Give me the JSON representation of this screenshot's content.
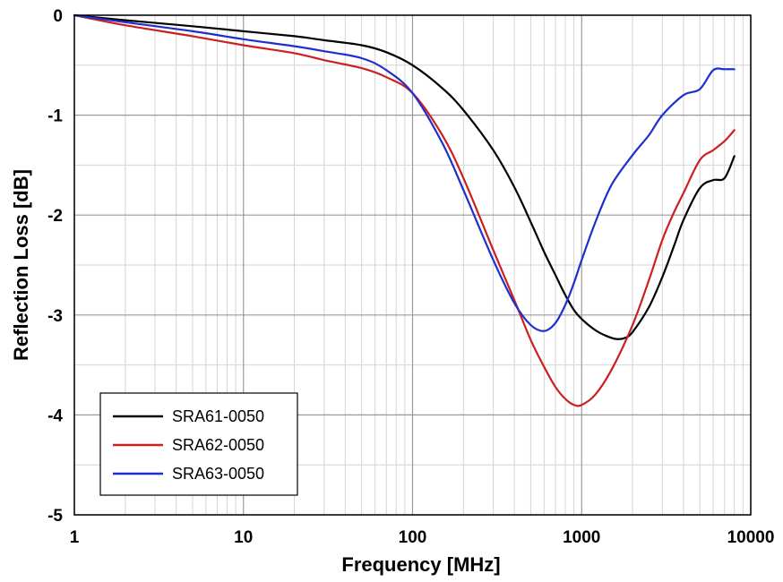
{
  "chart_data": {
    "type": "line",
    "xlabel": "Frequency [MHz]",
    "ylabel": "Reflection Loss [dB]",
    "x_scale": "log",
    "xlim": [
      1,
      10000
    ],
    "ylim": [
      -5,
      0
    ],
    "x_ticks": [
      1,
      10,
      100,
      1000,
      10000
    ],
    "x_tick_labels": [
      "1",
      "10",
      "100",
      "1000",
      "10000"
    ],
    "y_ticks": [
      0,
      -1,
      -2,
      -3,
      -4,
      -5
    ],
    "y_tick_labels": [
      "0",
      "-1",
      "-2",
      "-3",
      "-4",
      "-5"
    ],
    "grid": true,
    "minor_grid": true,
    "legend_position": "bottom-left",
    "series": [
      {
        "name": "SRA61-0050",
        "color": "#000000",
        "x": [
          1,
          2,
          5,
          10,
          20,
          30,
          50,
          70,
          100,
          150,
          200,
          300,
          400,
          500,
          600,
          700,
          800,
          900,
          1000,
          1200,
          1400,
          1600,
          1800,
          2000,
          2500,
          3000,
          3500,
          4000,
          5000,
          6000,
          7000,
          8000
        ],
        "y": [
          0,
          -0.05,
          -0.11,
          -0.16,
          -0.21,
          -0.25,
          -0.3,
          -0.37,
          -0.5,
          -0.73,
          -0.95,
          -1.35,
          -1.72,
          -2.07,
          -2.37,
          -2.6,
          -2.8,
          -2.95,
          -3.04,
          -3.15,
          -3.21,
          -3.24,
          -3.23,
          -3.17,
          -2.92,
          -2.62,
          -2.32,
          -2.05,
          -1.73,
          -1.65,
          -1.63,
          -1.41
        ]
      },
      {
        "name": "SRA62-0050",
        "color": "#cc1f1f",
        "x": [
          1,
          2,
          5,
          10,
          20,
          30,
          50,
          70,
          100,
          150,
          200,
          300,
          400,
          500,
          600,
          700,
          800,
          900,
          1000,
          1200,
          1500,
          2000,
          2500,
          3000,
          3500,
          4000,
          5000,
          6000,
          7000,
          8000
        ],
        "y": [
          0,
          -0.1,
          -0.21,
          -0.3,
          -0.38,
          -0.45,
          -0.53,
          -0.62,
          -0.78,
          -1.2,
          -1.63,
          -2.35,
          -2.85,
          -3.25,
          -3.52,
          -3.72,
          -3.84,
          -3.9,
          -3.9,
          -3.8,
          -3.55,
          -3.1,
          -2.65,
          -2.25,
          -1.98,
          -1.78,
          -1.45,
          -1.35,
          -1.26,
          -1.15
        ]
      },
      {
        "name": "SRA63-0050",
        "color": "#1f2fcc",
        "x": [
          1,
          2,
          5,
          10,
          20,
          30,
          50,
          70,
          100,
          150,
          200,
          300,
          400,
          500,
          600,
          700,
          800,
          900,
          1000,
          1200,
          1500,
          2000,
          2500,
          3000,
          4000,
          5000,
          6000,
          7000,
          8000
        ],
        "y": [
          0,
          -0.07,
          -0.16,
          -0.24,
          -0.31,
          -0.36,
          -0.43,
          -0.55,
          -0.78,
          -1.28,
          -1.75,
          -2.45,
          -2.88,
          -3.1,
          -3.16,
          -3.08,
          -2.9,
          -2.68,
          -2.45,
          -2.08,
          -1.7,
          -1.4,
          -1.2,
          -1.0,
          -0.8,
          -0.74,
          -0.55,
          -0.54,
          -0.54
        ]
      }
    ]
  }
}
